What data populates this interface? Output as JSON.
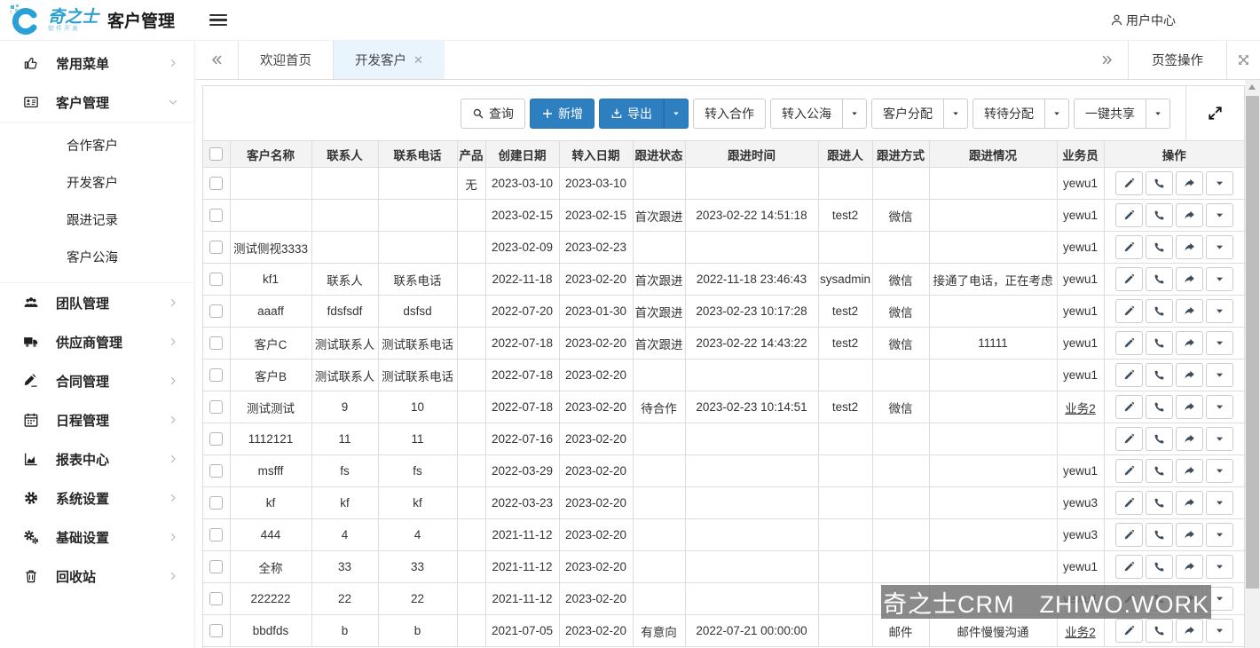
{
  "header": {
    "logo_text": "奇之士",
    "logo_subtext": "软件开发",
    "title": "客户管理",
    "user_center": "用户中心"
  },
  "sidebar": {
    "items": [
      {
        "label": "常用菜单",
        "icon": "thumbs-up-icon",
        "expanded": false
      },
      {
        "label": "客户管理",
        "icon": "id-card-icon",
        "expanded": true,
        "children": [
          "合作客户",
          "开发客户",
          "跟进记录",
          "客户公海"
        ]
      },
      {
        "label": "团队管理",
        "icon": "users-icon",
        "expanded": false
      },
      {
        "label": "供应商管理",
        "icon": "truck-icon",
        "expanded": false
      },
      {
        "label": "合同管理",
        "icon": "signature-icon",
        "expanded": false
      },
      {
        "label": "日程管理",
        "icon": "calendar-icon",
        "expanded": false
      },
      {
        "label": "报表中心",
        "icon": "chart-icon",
        "expanded": false
      },
      {
        "label": "系统设置",
        "icon": "gear-icon",
        "expanded": false
      },
      {
        "label": "基础设置",
        "icon": "gears-icon",
        "expanded": false
      },
      {
        "label": "回收站",
        "icon": "trash-icon",
        "expanded": false
      }
    ]
  },
  "tabs": {
    "items": [
      {
        "label": "欢迎首页",
        "active": false,
        "closable": false
      },
      {
        "label": "开发客户",
        "active": true,
        "closable": true
      }
    ],
    "ops_label": "页签操作"
  },
  "toolbar": {
    "buttons": [
      {
        "label": "查询",
        "icon": "search-icon",
        "variant": "default",
        "split": false
      },
      {
        "label": "新增",
        "icon": "plus-icon",
        "variant": "primary",
        "split": false
      },
      {
        "label": "导出",
        "icon": "export-icon",
        "variant": "primary",
        "split": true
      },
      {
        "label": "转入合作",
        "icon": "",
        "variant": "default",
        "split": false
      },
      {
        "label": "转入公海",
        "icon": "",
        "variant": "default",
        "split": true
      },
      {
        "label": "客户分配",
        "icon": "",
        "variant": "default",
        "split": true
      },
      {
        "label": "转待分配",
        "icon": "",
        "variant": "default",
        "split": true
      },
      {
        "label": "一键共享",
        "icon": "",
        "variant": "default",
        "split": true
      }
    ]
  },
  "table": {
    "columns": [
      "客户名称",
      "联系人",
      "联系电话",
      "产品",
      "创建日期",
      "转入日期",
      "跟进状态",
      "跟进时间",
      "跟进人",
      "跟进方式",
      "跟进情况",
      "业务员",
      "操作"
    ],
    "rows": [
      {
        "cells": [
          "",
          "",
          "",
          "无",
          "2023-03-10",
          "2023-03-10",
          "",
          "",
          "",
          "",
          "",
          "yewu1"
        ],
        "salesman_link": false
      },
      {
        "cells": [
          "",
          "",
          "",
          "",
          "2023-02-15",
          "2023-02-15",
          "首次跟进",
          "2023-02-22 14:51:18",
          "test2",
          "微信",
          "",
          "yewu1"
        ],
        "salesman_link": false
      },
      {
        "cells": [
          "测试侧视3333",
          "",
          "",
          "",
          "2023-02-09",
          "2023-02-23",
          "",
          "",
          "",
          "",
          "",
          "yewu1"
        ],
        "salesman_link": false
      },
      {
        "cells": [
          "kf1",
          "联系人",
          "联系电话",
          "",
          "2022-11-18",
          "2023-02-20",
          "首次跟进",
          "2022-11-18 23:46:43",
          "sysadmin",
          "微信",
          "接通了电话，正在考虑",
          "yewu1"
        ],
        "salesman_link": false
      },
      {
        "cells": [
          "aaaff",
          "fdsfsdf",
          "dsfsd",
          "",
          "2022-07-20",
          "2023-01-30",
          "首次跟进",
          "2023-02-23 10:17:28",
          "test2",
          "微信",
          "",
          "yewu1"
        ],
        "salesman_link": false
      },
      {
        "cells": [
          "客户C",
          "测试联系人",
          "测试联系电话",
          "",
          "2022-07-18",
          "2023-02-20",
          "首次跟进",
          "2023-02-22 14:43:22",
          "test2",
          "微信",
          "11111",
          "yewu1"
        ],
        "salesman_link": false
      },
      {
        "cells": [
          "客户B",
          "测试联系人",
          "测试联系电话",
          "",
          "2022-07-18",
          "2023-02-20",
          "",
          "",
          "",
          "",
          "",
          "yewu1"
        ],
        "salesman_link": false
      },
      {
        "cells": [
          "测试测试",
          "9",
          "10",
          "",
          "2022-07-18",
          "2023-02-20",
          "待合作",
          "2023-02-23 10:14:51",
          "test2",
          "微信",
          "",
          "业务2"
        ],
        "salesman_link": true
      },
      {
        "cells": [
          "1112121",
          "11",
          "11",
          "",
          "2022-07-16",
          "2023-02-20",
          "",
          "",
          "",
          "",
          "",
          ""
        ],
        "salesman_link": false
      },
      {
        "cells": [
          "msfff",
          "fs",
          "fs",
          "",
          "2022-03-29",
          "2023-02-20",
          "",
          "",
          "",
          "",
          "",
          "yewu1"
        ],
        "salesman_link": false
      },
      {
        "cells": [
          "kf",
          "kf",
          "kf",
          "",
          "2022-03-23",
          "2023-02-20",
          "",
          "",
          "",
          "",
          "",
          "yewu3"
        ],
        "salesman_link": false
      },
      {
        "cells": [
          "444",
          "4",
          "4",
          "",
          "2021-11-12",
          "2023-02-20",
          "",
          "",
          "",
          "",
          "",
          "yewu3"
        ],
        "salesman_link": false
      },
      {
        "cells": [
          "全称",
          "33",
          "33",
          "",
          "2021-11-12",
          "2023-02-20",
          "",
          "",
          "",
          "",
          "",
          "yewu1"
        ],
        "salesman_link": false
      },
      {
        "cells": [
          "222222",
          "22",
          "22",
          "",
          "2021-11-12",
          "2023-02-20",
          "",
          "",
          "",
          "",
          "",
          "yewu1"
        ],
        "salesman_link": false
      },
      {
        "cells": [
          "bbdfds",
          "b",
          "b",
          "",
          "2021-07-05",
          "2023-02-20",
          "有意向",
          "2022-07-21 00:00:00",
          "",
          "邮件",
          "邮件慢慢沟通",
          "业务2"
        ],
        "salesman_link": true
      }
    ],
    "action_icons": [
      "edit-pencil-icon",
      "call-phone-icon",
      "share-forward-icon",
      "caret-down-icon"
    ]
  },
  "watermark": {
    "text": "奇之士CRM　ZHIWO.WORK"
  },
  "colors": {
    "primary": "#2e7fc0",
    "active_tab_bg": "#e9f4fd",
    "table_header_bg": "#f3f3f3",
    "watermark_bg": "rgba(112,112,112,0.82)"
  }
}
